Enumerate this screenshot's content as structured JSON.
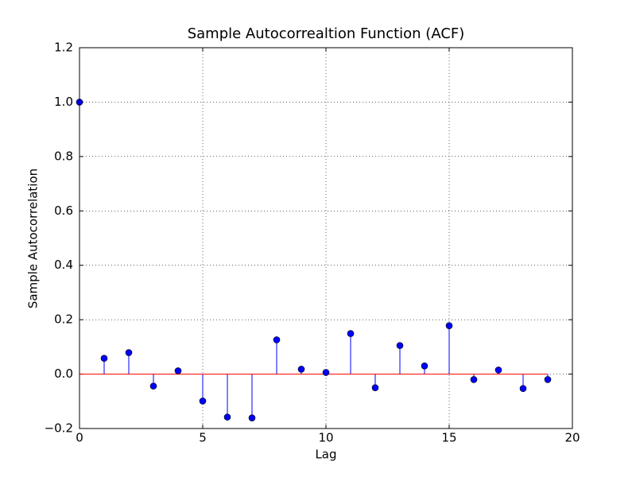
{
  "chart_data": {
    "type": "stem",
    "title": "Sample Autocorrealtion Function (ACF)",
    "xlabel": "Lag",
    "ylabel": "Sample Autocorrelation",
    "x": [
      0,
      1,
      2,
      3,
      4,
      5,
      6,
      7,
      8,
      9,
      10,
      11,
      12,
      13,
      14,
      15,
      16,
      17,
      18,
      19
    ],
    "values": [
      1.0,
      0.058,
      0.079,
      -0.044,
      0.012,
      -0.099,
      -0.158,
      -0.161,
      0.126,
      0.018,
      0.006,
      0.149,
      -0.05,
      0.105,
      0.03,
      0.178,
      -0.02,
      0.015,
      -0.053,
      -0.02
    ],
    "color": "#0000ff",
    "baseline_color": "#ff0000",
    "xlim": [
      0,
      20
    ],
    "xticks": [
      0,
      5,
      10,
      15,
      20
    ],
    "ylim": [
      -0.2,
      1.2
    ],
    "yticks": [
      {
        "value": -0.2,
        "label": "−0.2"
      },
      {
        "value": 0,
        "label": "0.0"
      },
      0.2,
      0.4,
      0.6,
      0.8,
      {
        "value": 1,
        "label": "1.0"
      },
      1.2
    ],
    "grid": true
  }
}
